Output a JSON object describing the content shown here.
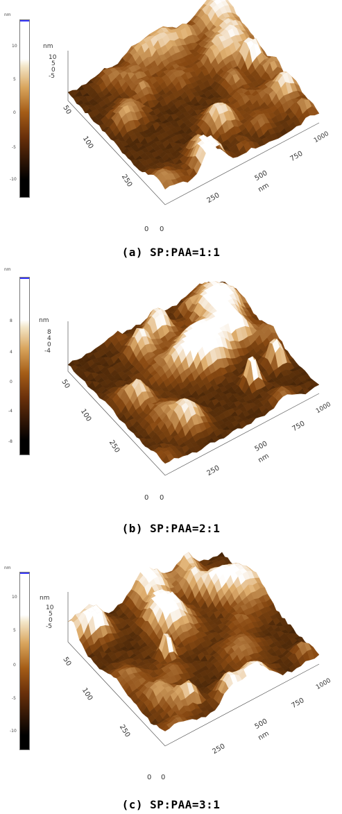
{
  "panels": [
    {
      "unit": "nm",
      "ticks": [
        "10",
        "5",
        "0",
        "-5",
        "-10"
      ],
      "z_unit": "nm",
      "z_ticks": [
        "10",
        "5",
        "0",
        "-5"
      ],
      "x_ticks": [
        "250",
        "500",
        "750",
        "1000"
      ],
      "x_unit": "nm",
      "y_ticks": [
        "50",
        "100",
        "250"
      ],
      "origin": [
        "0",
        "0"
      ],
      "caption": "(a) SP:PAA=1:1",
      "seed": 3
    },
    {
      "unit": "nm",
      "ticks": [
        "8",
        "4",
        "0",
        "-4",
        "-8"
      ],
      "z_unit": "nm",
      "z_ticks": [
        "8",
        "4",
        "0",
        "-4"
      ],
      "x_ticks": [
        "250",
        "500",
        "750",
        "1000"
      ],
      "x_unit": "nm",
      "y_ticks": [
        "50",
        "100",
        "250"
      ],
      "origin": [
        "0",
        "0"
      ],
      "caption": "(b) SP:PAA=2:1",
      "seed": 11
    },
    {
      "unit": "nm",
      "ticks": [
        "10",
        "5",
        "0",
        "-5",
        "-10"
      ],
      "z_unit": "nm",
      "z_ticks": [
        "10",
        "5",
        "0",
        "-5"
      ],
      "x_ticks": [
        "250",
        "500",
        "750",
        "1000"
      ],
      "x_unit": "nm",
      "y_ticks": [
        "50",
        "100",
        "250"
      ],
      "origin": [
        "0",
        "0"
      ],
      "caption": "(c) SP:PAA=3:1",
      "seed": 29
    }
  ],
  "colors": {
    "surface_low": "#1a0c00",
    "surface_mid": "#8a4a12",
    "surface_high": "#e0b070",
    "surface_peak": "#ffffff",
    "colorbar_top": "#3a3aff"
  }
}
